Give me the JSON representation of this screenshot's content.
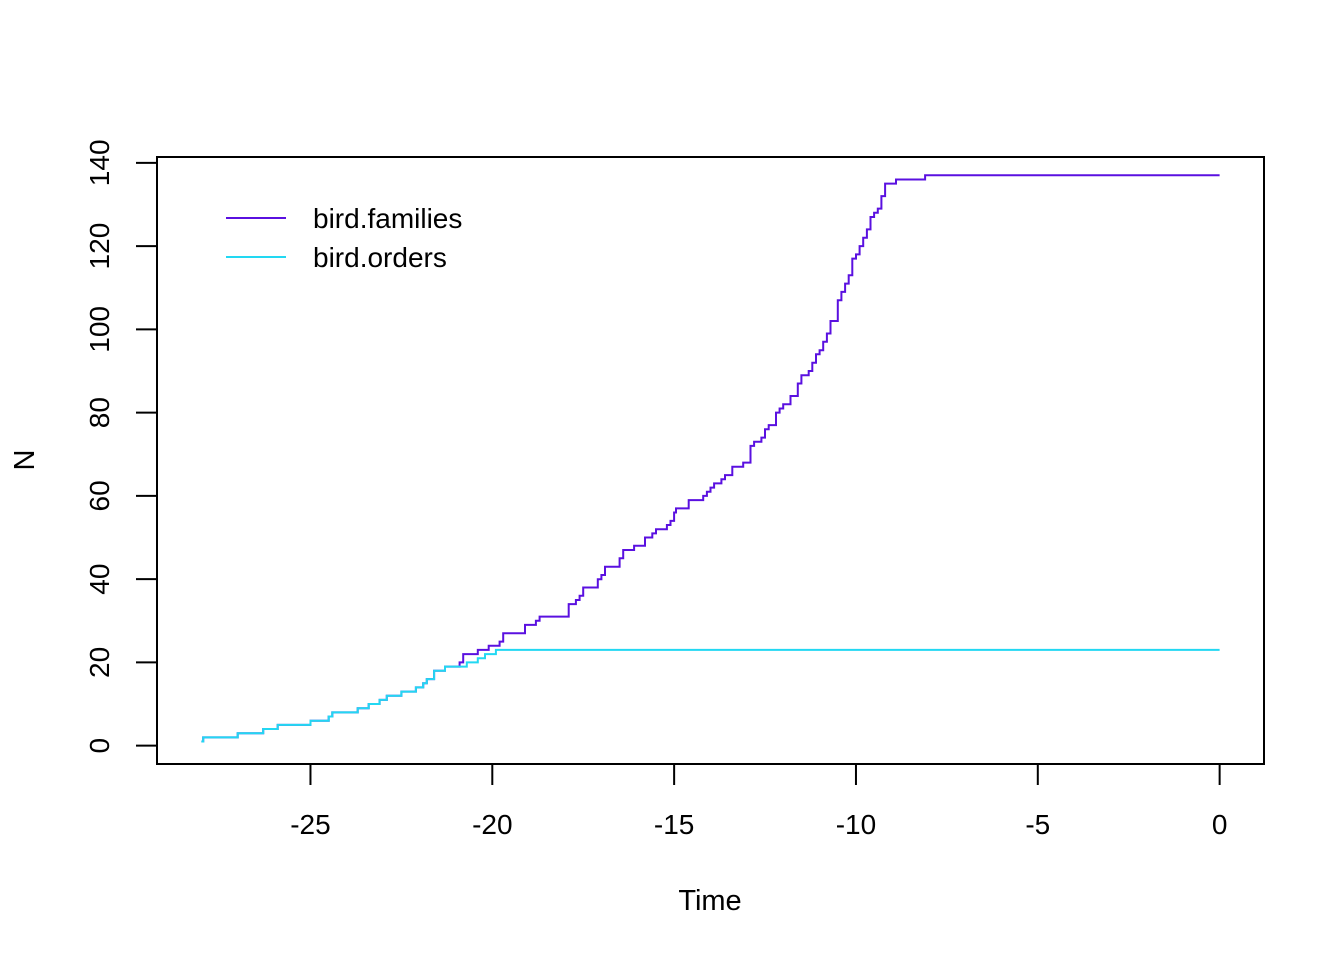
{
  "chart_data": {
    "type": "line",
    "step": true,
    "title": "",
    "xlabel": "Time",
    "ylabel": "N",
    "xlim": [
      -29.22,
      1.22
    ],
    "ylim": [
      -4.4,
      141.4
    ],
    "x_ticks": [
      -25,
      -20,
      -15,
      -10,
      -5,
      0
    ],
    "y_ticks": [
      0,
      20,
      40,
      60,
      80,
      100,
      120,
      140
    ],
    "grid": false,
    "legend": {
      "placement": "top-left",
      "boxed": false
    },
    "series": [
      {
        "name": "bird.families",
        "color": "#5a10e0",
        "points": [
          [
            -28.0,
            1
          ],
          [
            -27.95,
            2
          ],
          [
            -27.0,
            3
          ],
          [
            -26.3,
            4
          ],
          [
            -25.9,
            5
          ],
          [
            -25.0,
            6
          ],
          [
            -24.5,
            7
          ],
          [
            -24.4,
            8
          ],
          [
            -23.7,
            9
          ],
          [
            -23.4,
            10
          ],
          [
            -23.1,
            11
          ],
          [
            -22.9,
            12
          ],
          [
            -22.5,
            13
          ],
          [
            -22.1,
            14
          ],
          [
            -21.9,
            15
          ],
          [
            -21.8,
            16
          ],
          [
            -21.6,
            18
          ],
          [
            -21.3,
            19
          ],
          [
            -20.9,
            20
          ],
          [
            -20.8,
            22
          ],
          [
            -20.4,
            23
          ],
          [
            -20.1,
            24
          ],
          [
            -19.8,
            25
          ],
          [
            -19.7,
            27
          ],
          [
            -19.1,
            29
          ],
          [
            -18.8,
            30
          ],
          [
            -18.7,
            31
          ],
          [
            -17.9,
            34
          ],
          [
            -17.7,
            35
          ],
          [
            -17.6,
            36
          ],
          [
            -17.5,
            38
          ],
          [
            -17.1,
            40
          ],
          [
            -17.0,
            41
          ],
          [
            -16.9,
            43
          ],
          [
            -16.5,
            45
          ],
          [
            -16.4,
            47
          ],
          [
            -16.1,
            48
          ],
          [
            -15.8,
            50
          ],
          [
            -15.6,
            51
          ],
          [
            -15.5,
            52
          ],
          [
            -15.2,
            53
          ],
          [
            -15.1,
            54
          ],
          [
            -15.0,
            56
          ],
          [
            -14.95,
            57
          ],
          [
            -14.6,
            59
          ],
          [
            -14.2,
            60
          ],
          [
            -14.1,
            61
          ],
          [
            -14.0,
            62
          ],
          [
            -13.9,
            63
          ],
          [
            -13.7,
            64
          ],
          [
            -13.6,
            65
          ],
          [
            -13.4,
            67
          ],
          [
            -13.1,
            68
          ],
          [
            -12.9,
            72
          ],
          [
            -12.8,
            73
          ],
          [
            -12.6,
            74
          ],
          [
            -12.5,
            76
          ],
          [
            -12.4,
            77
          ],
          [
            -12.2,
            80
          ],
          [
            -12.1,
            81
          ],
          [
            -12.0,
            82
          ],
          [
            -11.8,
            84
          ],
          [
            -11.6,
            87
          ],
          [
            -11.5,
            89
          ],
          [
            -11.3,
            90
          ],
          [
            -11.2,
            92
          ],
          [
            -11.1,
            94
          ],
          [
            -11.0,
            95
          ],
          [
            -10.9,
            97
          ],
          [
            -10.8,
            99
          ],
          [
            -10.7,
            102
          ],
          [
            -10.5,
            107
          ],
          [
            -10.4,
            109
          ],
          [
            -10.3,
            111
          ],
          [
            -10.2,
            113
          ],
          [
            -10.1,
            117
          ],
          [
            -10.0,
            118
          ],
          [
            -9.9,
            120
          ],
          [
            -9.8,
            122
          ],
          [
            -9.7,
            124
          ],
          [
            -9.6,
            127
          ],
          [
            -9.5,
            128
          ],
          [
            -9.4,
            129
          ],
          [
            -9.3,
            132
          ],
          [
            -9.2,
            135
          ],
          [
            -8.9,
            136
          ],
          [
            -8.1,
            137
          ],
          [
            0.0,
            137
          ]
        ]
      },
      {
        "name": "bird.orders",
        "color": "#22d8f2",
        "points": [
          [
            -28.0,
            1
          ],
          [
            -27.95,
            2
          ],
          [
            -27.0,
            3
          ],
          [
            -26.3,
            4
          ],
          [
            -25.9,
            5
          ],
          [
            -25.0,
            6
          ],
          [
            -24.5,
            7
          ],
          [
            -24.4,
            8
          ],
          [
            -23.7,
            9
          ],
          [
            -23.4,
            10
          ],
          [
            -23.1,
            11
          ],
          [
            -22.9,
            12
          ],
          [
            -22.5,
            13
          ],
          [
            -22.1,
            14
          ],
          [
            -21.9,
            15
          ],
          [
            -21.8,
            16
          ],
          [
            -21.6,
            18
          ],
          [
            -21.3,
            19
          ],
          [
            -20.7,
            20
          ],
          [
            -20.4,
            21
          ],
          [
            -20.2,
            22
          ],
          [
            -19.9,
            23
          ],
          [
            0.0,
            23
          ]
        ]
      }
    ]
  }
}
